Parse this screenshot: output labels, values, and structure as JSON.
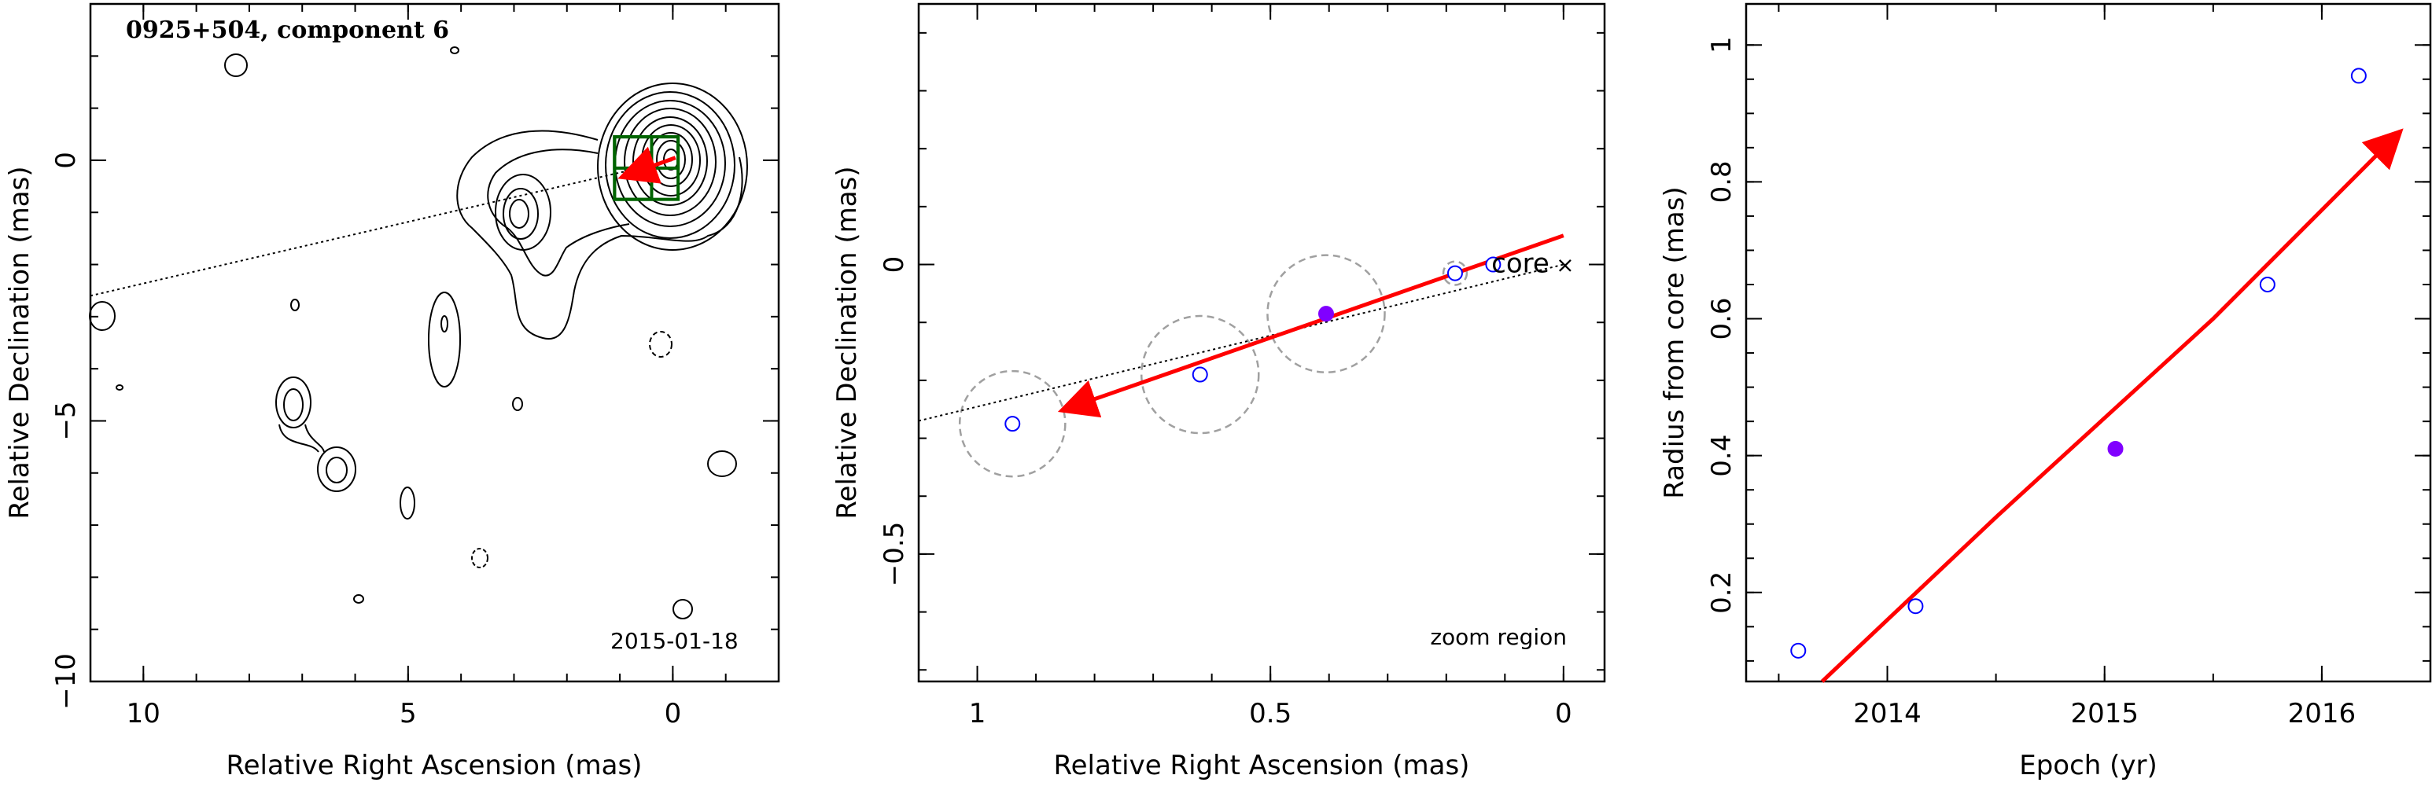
{
  "chart_data": [
    {
      "type": "contour",
      "title": "0925+504, component 6",
      "date": "2015-01-18",
      "xlabel": "Relative Right Ascension (mas)",
      "ylabel": "Relative Declination (mas)",
      "xlim": [
        11,
        -2
      ],
      "ylim": [
        -10,
        3
      ],
      "xticks": [
        10,
        5,
        0
      ],
      "yticks": [
        0,
        -5,
        -10
      ],
      "core": [
        0,
        0
      ],
      "trajectory_line": {
        "from": [
          11,
          -2.6
        ],
        "to": [
          0,
          0
        ]
      },
      "velocity_arrow": {
        "from": [
          -0.05,
          0.05
        ],
        "to": [
          0.9,
          -0.3
        ]
      },
      "boxes": [
        {
          "x": [
            -0.1,
            1.1
          ],
          "y": [
            -0.75,
            0.45
          ]
        },
        {
          "x": [
            0.4,
            1.1
          ],
          "y": [
            -0.75,
            0.45
          ]
        },
        {
          "x": [
            -0.1,
            1.1
          ],
          "y": [
            -0.15,
            0.45
          ]
        }
      ],
      "colors": {
        "arrow": "#ff0000",
        "box": "#006400",
        "contour": "#000000"
      }
    },
    {
      "type": "scatter",
      "title": "",
      "annotation_zoom": "zoom region",
      "annotation_core": "core",
      "core_marker": "×",
      "xlabel": "Relative Right Ascension (mas)",
      "ylabel": "Relative Declination (mas)",
      "xlim": [
        1.1,
        -0.07
      ],
      "ylim": [
        -0.72,
        0.45
      ],
      "xticks": [
        1,
        0.5,
        0
      ],
      "xtick_labels": [
        "1",
        "0.5",
        "0"
      ],
      "yticks": [
        0,
        -0.5
      ],
      "ytick_labels": [
        "0",
        "−0.5"
      ],
      "points": [
        {
          "x": 0.94,
          "y": -0.275,
          "filled": false
        },
        {
          "x": 0.62,
          "y": -0.19,
          "filled": false
        },
        {
          "x": 0.405,
          "y": -0.085,
          "filled": true
        },
        {
          "x": 0.185,
          "y": -0.015,
          "filled": false
        },
        {
          "x": 0.12,
          "y": 0.0,
          "filled": false
        }
      ],
      "error_circles": [
        {
          "x": 0.94,
          "y": -0.275,
          "r": 0.09
        },
        {
          "x": 0.62,
          "y": -0.19,
          "r": 0.1
        },
        {
          "x": 0.405,
          "y": -0.085,
          "r": 0.1
        },
        {
          "x": 0.185,
          "y": -0.015,
          "r": 0.02
        }
      ],
      "trajectory_line": {
        "from": [
          1.1,
          -0.27
        ],
        "to": [
          0,
          0
        ]
      },
      "velocity_arrow": {
        "from": [
          0,
          0.05
        ],
        "to": [
          0.85,
          -0.25
        ]
      },
      "colors": {
        "point": "#0000ff",
        "filled_point": "#8000ff",
        "arrow": "#ff0000",
        "circle": "#a0a0a0"
      }
    },
    {
      "type": "scatter",
      "title": "",
      "xlabel": "Epoch (yr)",
      "ylabel": "Radius from core (mas)",
      "xlim": [
        2013.35,
        2016.5
      ],
      "ylim": [
        0.07,
        1.06
      ],
      "xticks": [
        2014,
        2015,
        2016
      ],
      "yticks": [
        0.2,
        0.4,
        0.6,
        0.8,
        1
      ],
      "ytick_labels": [
        "0.2",
        "0.4",
        "0.6",
        "0.8",
        "1"
      ],
      "points": [
        {
          "x": 2013.59,
          "y": 0.115,
          "filled": false
        },
        {
          "x": 2014.13,
          "y": 0.18,
          "filled": false
        },
        {
          "x": 2015.05,
          "y": 0.41,
          "filled": true
        },
        {
          "x": 2015.75,
          "y": 0.65,
          "filled": false
        },
        {
          "x": 2016.17,
          "y": 0.955,
          "filled": false
        }
      ],
      "fit_curve": [
        [
          2013.7,
          0.07
        ],
        [
          2014.5,
          0.31
        ],
        [
          2015.5,
          0.6
        ],
        [
          2016.35,
          0.87
        ]
      ],
      "colors": {
        "point": "#0000ff",
        "filled_point": "#8000ff",
        "arrow": "#ff0000"
      }
    }
  ]
}
